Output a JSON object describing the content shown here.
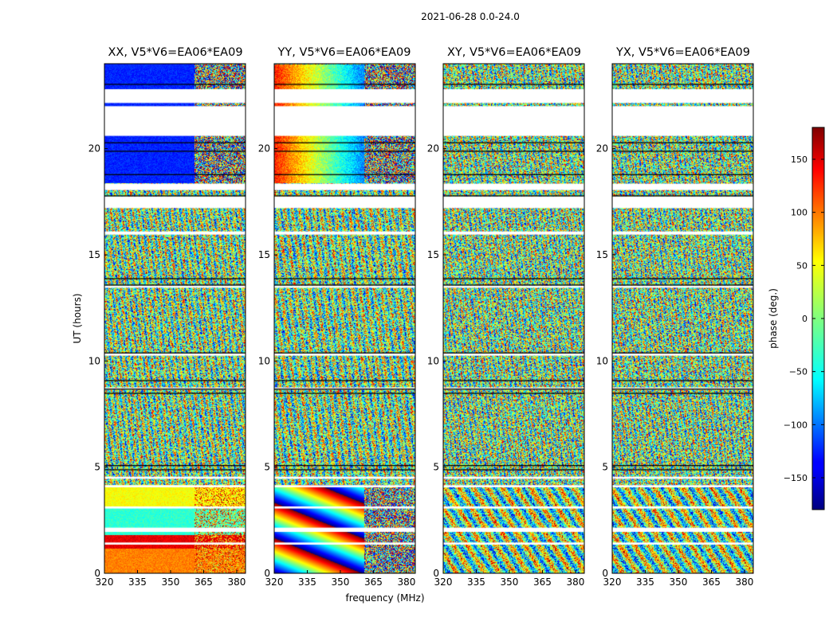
{
  "figure": {
    "suptitle": "2021-06-28 0.0-24.0",
    "xlabel": "frequency (MHz)",
    "ylabel": "UT (hours)",
    "colorbar_label": "phase (deg.)"
  },
  "chart_data": [
    {
      "type": "heatmap",
      "title": "XX, V5*V6=EA06*EA09",
      "xlim": [
        320,
        384
      ],
      "ylim": [
        0,
        24
      ],
      "xticks": [
        "320",
        "335",
        "350",
        "365",
        "380"
      ],
      "yticks": [
        "0",
        "5",
        "10",
        "15",
        "20"
      ],
      "colormap": "jet"
    },
    {
      "type": "heatmap",
      "title": "YY, V5*V6=EA06*EA09",
      "xlim": [
        320,
        384
      ],
      "ylim": [
        0,
        24
      ],
      "xticks": [
        "320",
        "335",
        "350",
        "365",
        "380"
      ],
      "yticks": [
        "0",
        "5",
        "10",
        "15",
        "20"
      ],
      "colormap": "jet"
    },
    {
      "type": "heatmap",
      "title": "XY, V5*V6=EA06*EA09",
      "xlim": [
        320,
        384
      ],
      "ylim": [
        0,
        24
      ],
      "xticks": [
        "320",
        "335",
        "350",
        "365",
        "380"
      ],
      "yticks": [
        "0",
        "5",
        "10",
        "15",
        "20"
      ],
      "colormap": "jet"
    },
    {
      "type": "heatmap",
      "title": "YX, V5*V6=EA06*EA09",
      "xlim": [
        320,
        384
      ],
      "ylim": [
        0,
        24
      ],
      "xticks": [
        "320",
        "335",
        "350",
        "365",
        "380"
      ],
      "yticks": [
        "0",
        "5",
        "10",
        "15",
        "20"
      ],
      "colormap": "jet"
    }
  ],
  "colorbar": {
    "range": [
      -180,
      180
    ],
    "ticks": [
      "150",
      "100",
      "50",
      "0",
      "−50",
      "−100",
      "−150"
    ],
    "tick_values": [
      150,
      100,
      50,
      0,
      -50,
      -100,
      -150
    ],
    "colormap": "jet"
  }
}
